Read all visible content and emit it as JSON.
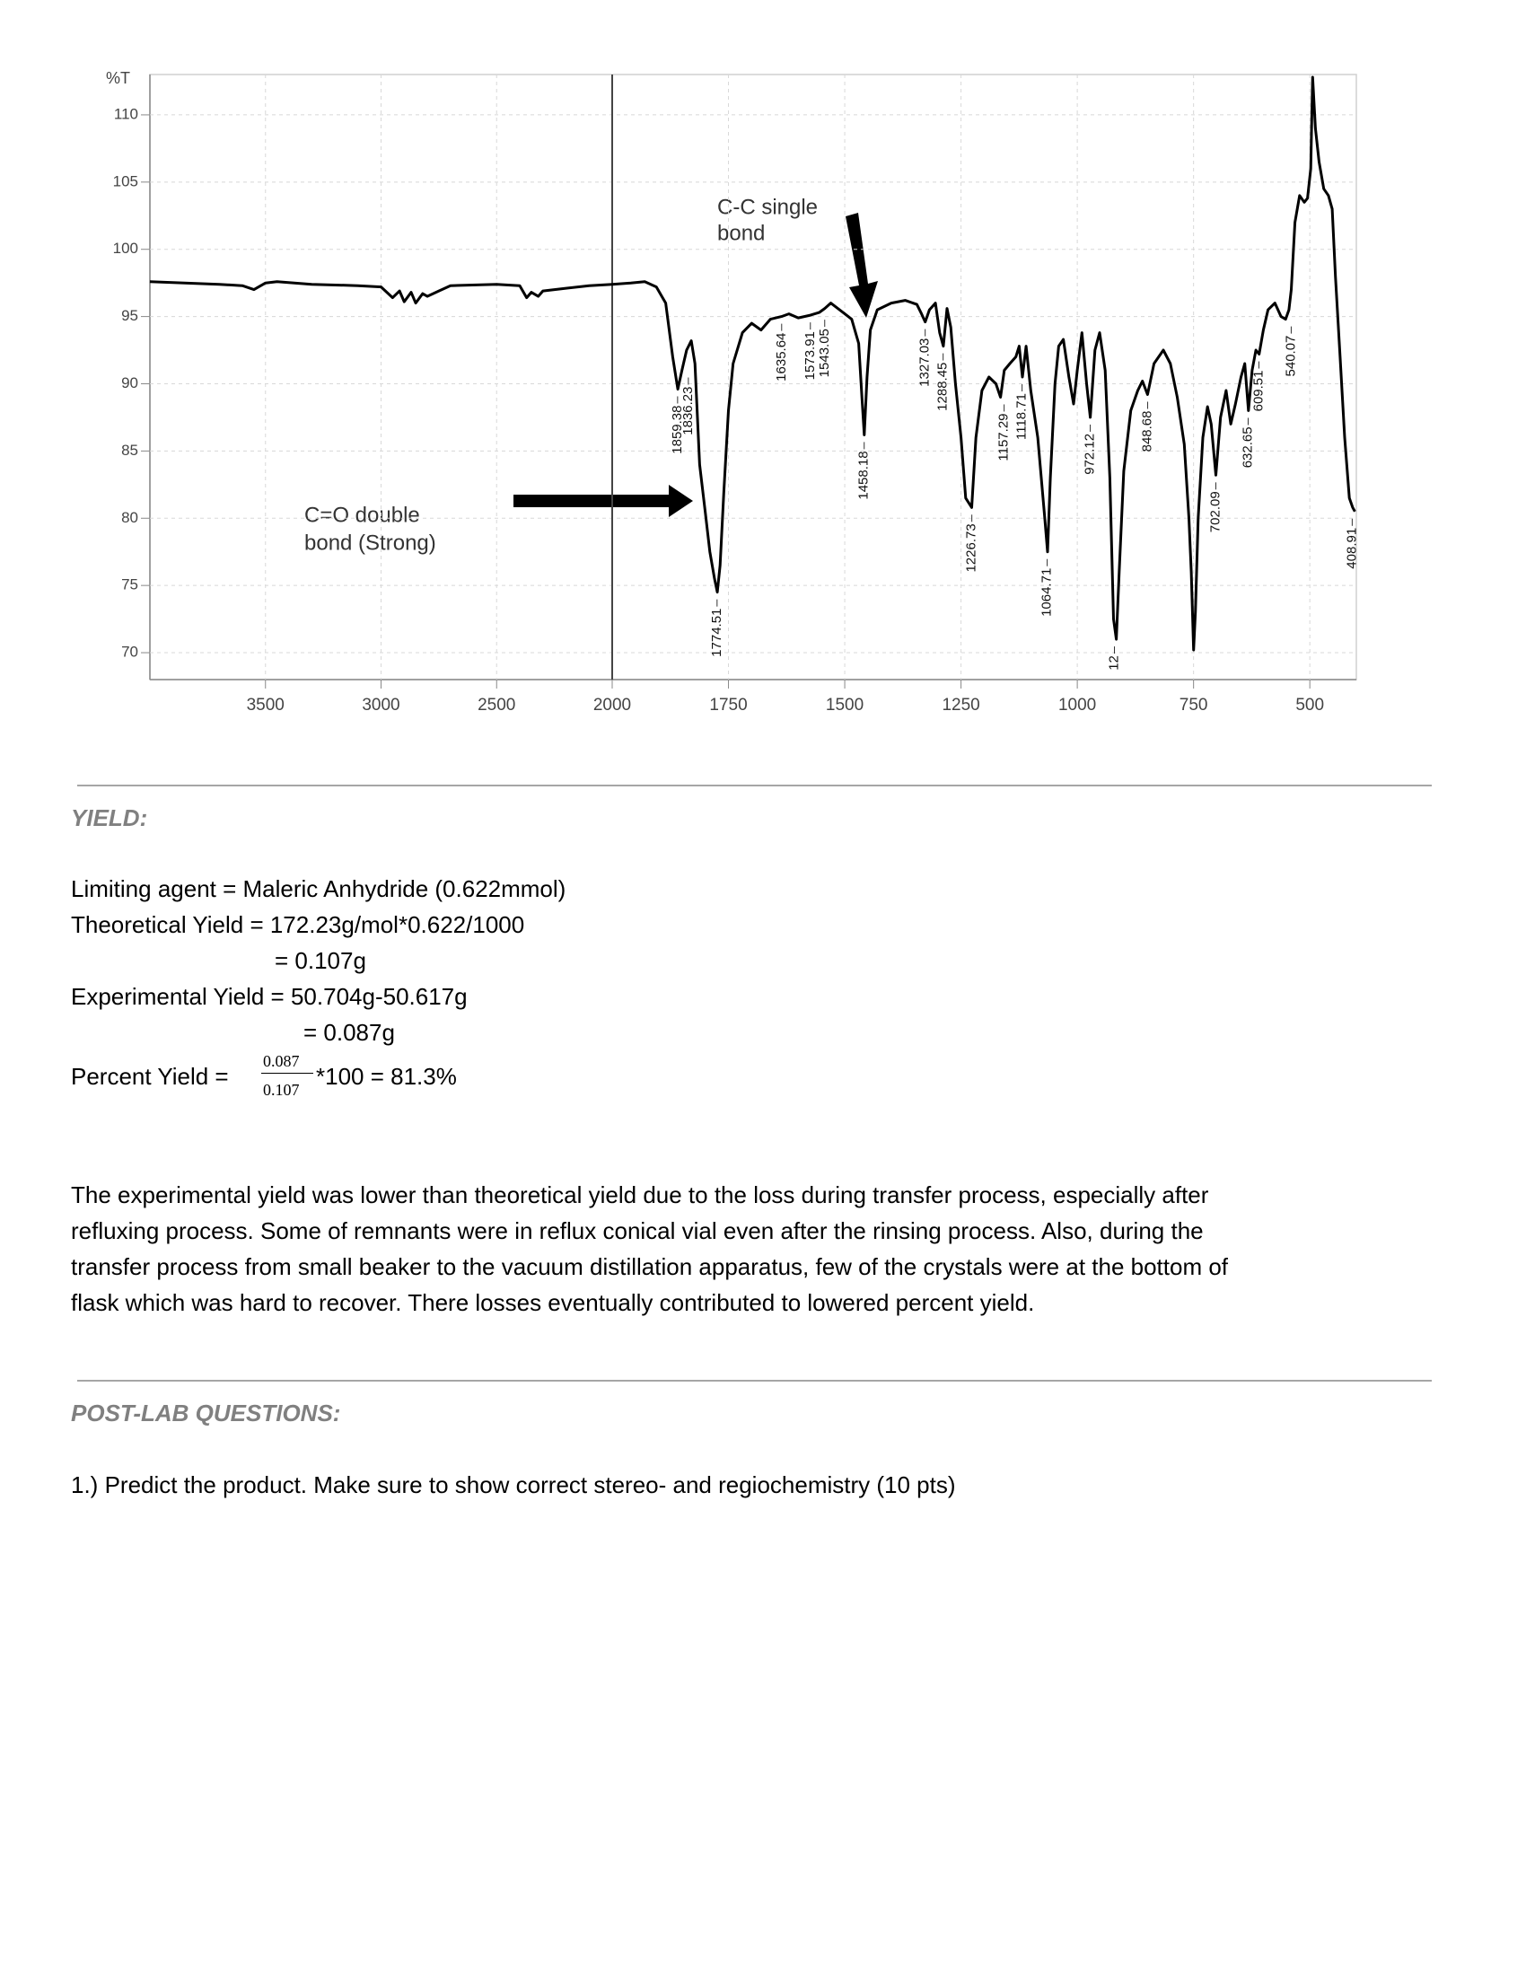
{
  "chart_data": {
    "type": "line",
    "ylabel": "%T",
    "color": "#000000",
    "grid": true,
    "xlim": [
      4000,
      400
    ],
    "xbreak": 2000,
    "ylim": [
      68,
      113
    ],
    "xticks": [
      3500,
      3000,
      2500,
      2000,
      1750,
      1500,
      1250,
      1000,
      750,
      500
    ],
    "yticks": [
      70,
      75,
      80,
      85,
      90,
      95,
      100,
      105,
      110
    ],
    "x": [
      4000,
      3850,
      3700,
      3600,
      3550,
      3500,
      3450,
      3300,
      3100,
      3000,
      2950,
      2920,
      2900,
      2870,
      2850,
      2820,
      2800,
      2750,
      2700,
      2500,
      2400,
      2370,
      2350,
      2320,
      2300,
      2200,
      2100,
      2000,
      1960,
      1930,
      1905,
      1885,
      1870,
      1859,
      1850,
      1840,
      1830,
      1822,
      1812,
      1800,
      1790,
      1780,
      1774,
      1768,
      1760,
      1750,
      1740,
      1720,
      1700,
      1680,
      1660,
      1636,
      1620,
      1600,
      1574,
      1555,
      1543,
      1530,
      1515,
      1500,
      1485,
      1470,
      1463,
      1458,
      1452,
      1445,
      1430,
      1400,
      1370,
      1345,
      1335,
      1327,
      1318,
      1305,
      1296,
      1288,
      1280,
      1272,
      1262,
      1250,
      1240,
      1227,
      1218,
      1205,
      1190,
      1175,
      1165,
      1157,
      1145,
      1132,
      1125,
      1118,
      1110,
      1100,
      1085,
      1070,
      1064,
      1058,
      1048,
      1040,
      1030,
      1018,
      1008,
      1000,
      990,
      980,
      972,
      962,
      952,
      940,
      930,
      922,
      916,
      910,
      900,
      885,
      870,
      860,
      849,
      835,
      815,
      800,
      785,
      770,
      760,
      755,
      750,
      746,
      740,
      730,
      720,
      712,
      702,
      692,
      680,
      670,
      660,
      648,
      640,
      632,
      624,
      616,
      609,
      600,
      590,
      575,
      562,
      552,
      545,
      540,
      532,
      522,
      512,
      505,
      498,
      494,
      488,
      480,
      470,
      460,
      452,
      445,
      435,
      425,
      415,
      408,
      403
    ],
    "values": [
      97.6,
      97.5,
      97.4,
      97.3,
      97.0,
      97.5,
      97.6,
      97.4,
      97.3,
      97.2,
      96.4,
      96.9,
      96.1,
      96.8,
      96.0,
      96.7,
      96.5,
      96.9,
      97.3,
      97.4,
      97.3,
      96.4,
      96.8,
      96.5,
      96.9,
      97.1,
      97.3,
      97.4,
      97.5,
      97.6,
      97.2,
      96.0,
      92.0,
      89.6,
      91.0,
      92.5,
      93.2,
      91.5,
      84.0,
      80.5,
      77.5,
      75.5,
      74.5,
      76.5,
      82.0,
      88.0,
      91.5,
      93.8,
      94.5,
      94.0,
      94.8,
      95.0,
      95.2,
      94.9,
      95.1,
      95.3,
      95.6,
      96.0,
      95.6,
      95.2,
      94.8,
      93.0,
      89.0,
      86.2,
      90.5,
      94.0,
      95.5,
      96.0,
      96.2,
      95.9,
      95.2,
      94.6,
      95.5,
      96.0,
      93.8,
      92.8,
      95.6,
      94.2,
      90.0,
      86.0,
      81.5,
      80.8,
      86.0,
      89.5,
      90.5,
      90.0,
      89.0,
      91.0,
      91.5,
      92.0,
      92.8,
      90.5,
      92.8,
      89.5,
      86.0,
      80.0,
      77.5,
      83.0,
      90.0,
      92.8,
      93.3,
      90.5,
      88.5,
      91.0,
      93.8,
      90.0,
      87.5,
      92.5,
      93.8,
      91.0,
      83.0,
      72.5,
      71.0,
      76.0,
      83.5,
      88.0,
      89.5,
      90.2,
      89.2,
      91.5,
      92.5,
      91.5,
      89.0,
      85.5,
      80.0,
      76.0,
      70.2,
      73.0,
      80.0,
      86.0,
      88.3,
      87.0,
      83.2,
      87.5,
      89.5,
      87.0,
      88.5,
      90.5,
      91.5,
      88.0,
      91.0,
      92.5,
      92.2,
      94.0,
      95.5,
      96.0,
      95.0,
      94.8,
      95.5,
      97.0,
      102.0,
      104.0,
      103.5,
      103.8,
      106.0,
      112.8,
      109.0,
      106.5,
      104.5,
      104.0,
      103.0,
      98.0,
      92.0,
      86.0,
      81.5,
      80.8,
      80.5
    ],
    "peak_labels": [
      1859.38,
      1836.23,
      1774.51,
      1635.64,
      1573.91,
      1543.05,
      1458.18,
      1327.03,
      1288.45,
      1226.73,
      1157.29,
      1118.71,
      1064.71,
      972.12,
      {
        "value": 920.12,
        "label": "12"
      },
      848.68,
      702.09,
      632.65,
      609.51,
      540.07,
      408.91
    ],
    "annotations": [
      [
        "C-C single",
        "bond"
      ],
      [
        "C=O double",
        "bond (Strong)"
      ]
    ]
  },
  "yield": {
    "heading": "YIELD:",
    "lines": [
      "Limiting agent = Maleric Anhydride (0.622mmol)",
      "Theoretical Yield = 172.23g/mol*0.622/1000",
      "= 0.107g",
      "Experimental Yield = 50.704g-50.617g",
      "= 0.087g"
    ],
    "percent": {
      "label": "Percent Yield =",
      "numerator": "0.087",
      "denominator": "0.107",
      "rest": "*100 = 81.3%"
    }
  },
  "discussion": {
    "lines": [
      "The experimental yield was lower than theoretical yield due to the loss during transfer process, especially after",
      "refluxing process. Some of remnants were in reflux conical vial even after the rinsing process. Also, during the",
      "transfer process from small beaker to the vacuum distillation apparatus, few of the crystals were at the bottom of",
      "flask which was hard to recover. There losses eventually contributed to lowered percent yield."
    ]
  },
  "post_lab": {
    "heading": "POST-LAB QUESTIONS:",
    "questions": [
      "1.) Predict the product. Make sure to show correct stereo- and regiochemistry (10 pts)"
    ]
  }
}
